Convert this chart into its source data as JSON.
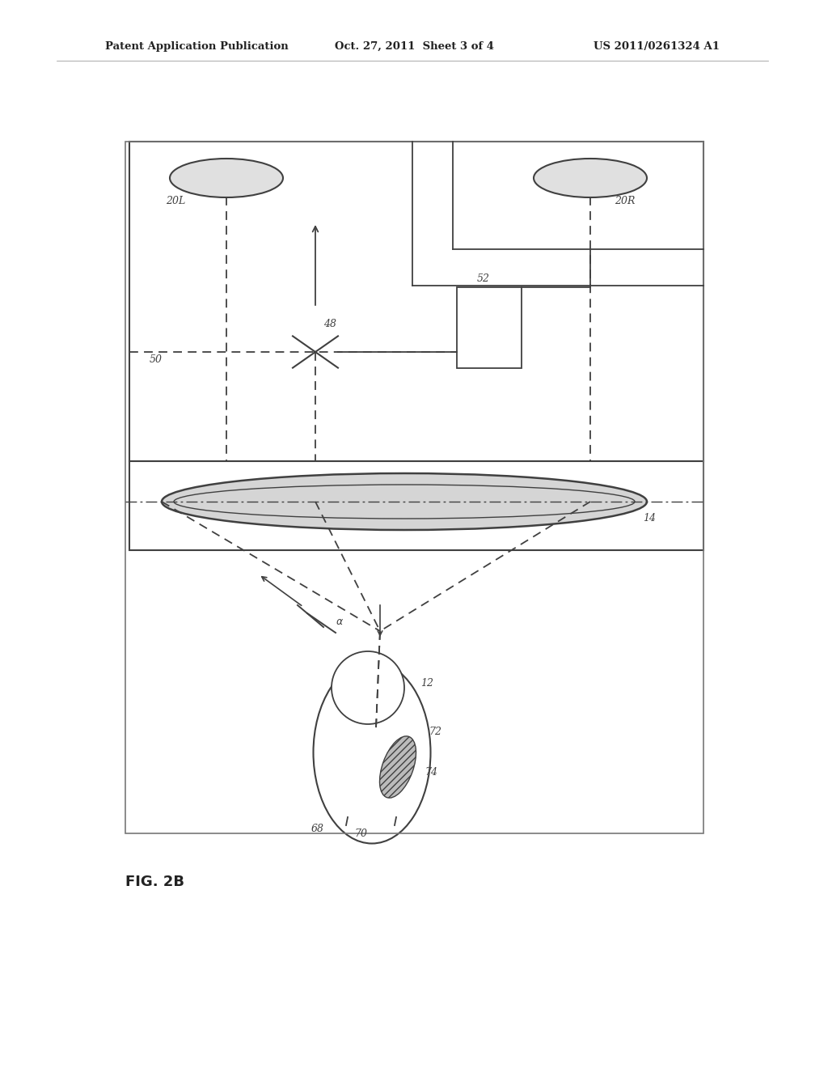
{
  "bg_color": "#ffffff",
  "line_color": "#404040",
  "header_left": "Patent Application Publication",
  "header_mid": "Oct. 27, 2011  Sheet 3 of 4",
  "header_right": "US 2011/0261324 A1",
  "footer_label": "FIG. 2B",
  "figsize": [
    10.24,
    13.2
  ],
  "dpi": 100
}
